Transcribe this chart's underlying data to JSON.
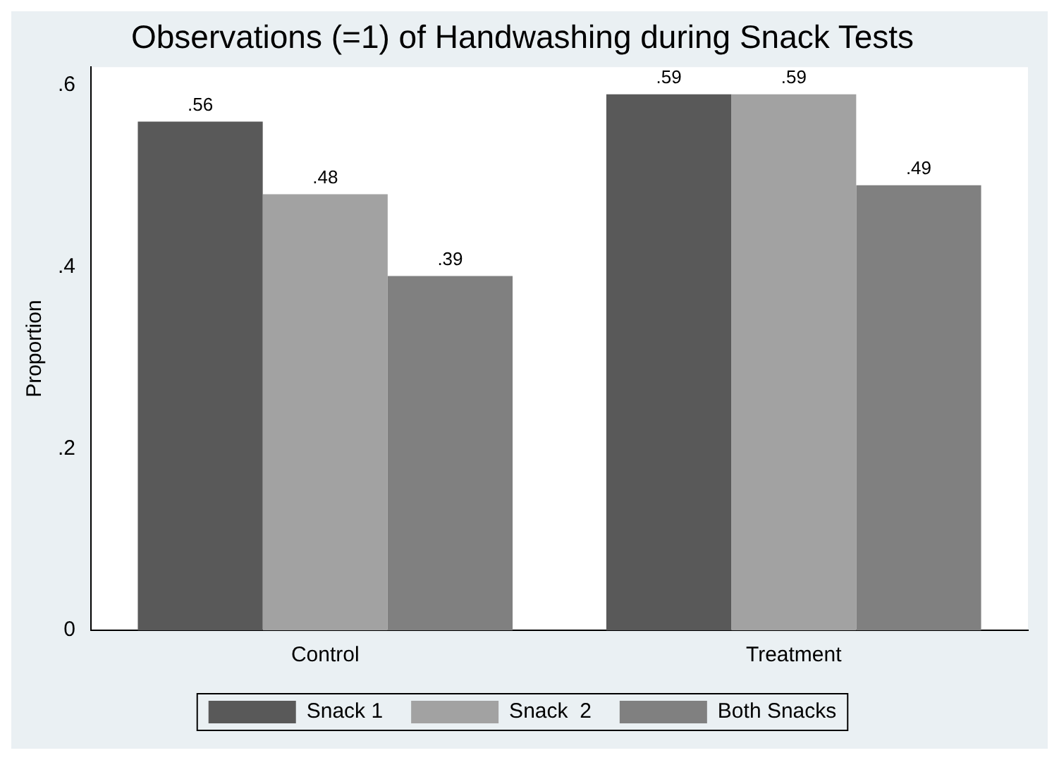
{
  "chart_data": {
    "type": "bar",
    "title": "Observations (=1) of Handwashing during Snack Tests",
    "ylabel": "Proportion",
    "categories": [
      "Control",
      "Treatment"
    ],
    "series": [
      {
        "name": "Snack 1",
        "color": "#595959",
        "values": [
          0.56,
          0.59
        ],
        "value_labels": [
          ".56",
          ".59"
        ]
      },
      {
        "name": "Snack  2",
        "color": "#a2a2a2",
        "values": [
          0.48,
          0.59
        ],
        "value_labels": [
          ".48",
          ".59"
        ]
      },
      {
        "name": "Both Snacks",
        "color": "#808080",
        "values": [
          0.39,
          0.49
        ],
        "value_labels": [
          ".39",
          ".49"
        ]
      }
    ],
    "ylim": [
      0,
      0.62
    ],
    "yticks": [
      0,
      {
        "value": 0.2,
        "label": ".2"
      },
      {
        "value": 0.4,
        "label": ".4"
      },
      {
        "value": 0.6,
        "label": ".6"
      }
    ],
    "grid": false,
    "legend": "bottom"
  }
}
